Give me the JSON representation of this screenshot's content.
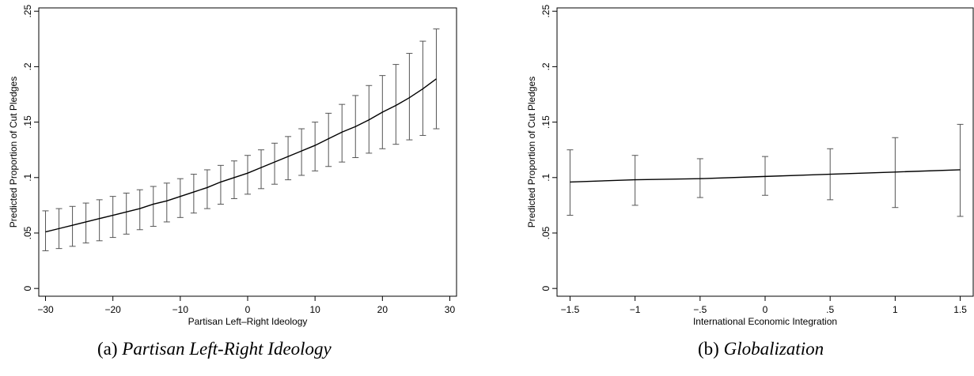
{
  "captions": [
    {
      "tag": "(a)",
      "text": "Partisan Left-Right Ideology"
    },
    {
      "tag": "(b)",
      "text": "Globalization"
    }
  ],
  "chart_data": [
    {
      "type": "line",
      "title": "",
      "xlabel": "Partisan Left–Right Ideology",
      "ylabel": "Predicted Proportion of Cut Pledges",
      "xlim": [
        -31,
        31
      ],
      "ylim": [
        -0.007,
        0.253
      ],
      "xticks": [
        -30,
        -20,
        -10,
        0,
        10,
        20,
        30
      ],
      "xtick_labels": [
        "−30",
        "−20",
        "−10",
        "0",
        "10",
        "20",
        "30"
      ],
      "yticks": [
        0,
        0.05,
        0.1,
        0.15,
        0.2,
        0.25
      ],
      "ytick_labels": [
        "0",
        ".05",
        ".1",
        ".15",
        ".2",
        ".25"
      ],
      "grid": false,
      "series": [
        {
          "x": [
            -30,
            -28,
            -26,
            -24,
            -22,
            -20,
            -18,
            -16,
            -14,
            -12,
            -10,
            -8,
            -6,
            -4,
            -2,
            0,
            2,
            4,
            6,
            8,
            10,
            12,
            14,
            16,
            18,
            20,
            22,
            24,
            26,
            28
          ],
          "y": [
            0.051,
            0.054,
            0.057,
            0.06,
            0.063,
            0.066,
            0.069,
            0.072,
            0.076,
            0.079,
            0.083,
            0.087,
            0.091,
            0.096,
            0.1,
            0.104,
            0.109,
            0.114,
            0.119,
            0.124,
            0.129,
            0.135,
            0.141,
            0.146,
            0.152,
            0.159,
            0.165,
            0.172,
            0.18,
            0.189
          ],
          "ci_low": [
            0.034,
            0.036,
            0.038,
            0.041,
            0.043,
            0.046,
            0.049,
            0.053,
            0.056,
            0.06,
            0.064,
            0.068,
            0.072,
            0.076,
            0.081,
            0.085,
            0.09,
            0.094,
            0.098,
            0.102,
            0.106,
            0.11,
            0.114,
            0.118,
            0.122,
            0.126,
            0.13,
            0.134,
            0.138,
            0.144
          ],
          "ci_high": [
            0.07,
            0.072,
            0.074,
            0.077,
            0.08,
            0.083,
            0.086,
            0.089,
            0.092,
            0.095,
            0.099,
            0.103,
            0.107,
            0.111,
            0.115,
            0.12,
            0.125,
            0.131,
            0.137,
            0.144,
            0.15,
            0.158,
            0.166,
            0.174,
            0.183,
            0.192,
            0.202,
            0.212,
            0.223,
            0.234
          ]
        }
      ]
    },
    {
      "type": "line",
      "title": "",
      "xlabel": "International Economic Integration",
      "ylabel": "Predicted Proportion of Cut Pledges",
      "xlim": [
        -1.6,
        1.6
      ],
      "ylim": [
        -0.007,
        0.253
      ],
      "xticks": [
        -1.5,
        -1,
        -0.5,
        0,
        0.5,
        1,
        1.5
      ],
      "xtick_labels": [
        "−1.5",
        "−1",
        "−.5",
        "0",
        ".5",
        "1",
        "1.5"
      ],
      "yticks": [
        0,
        0.05,
        0.1,
        0.15,
        0.2,
        0.25
      ],
      "ytick_labels": [
        "0",
        ".05",
        ".1",
        ".15",
        ".2",
        ".25"
      ],
      "grid": false,
      "series": [
        {
          "x": [
            -1.5,
            -1,
            -0.5,
            0,
            0.5,
            1,
            1.5
          ],
          "y": [
            0.096,
            0.098,
            0.099,
            0.101,
            0.103,
            0.105,
            0.107
          ],
          "ci_low": [
            0.066,
            0.075,
            0.082,
            0.084,
            0.08,
            0.073,
            0.065
          ],
          "ci_high": [
            0.125,
            0.12,
            0.117,
            0.119,
            0.126,
            0.136,
            0.148
          ]
        }
      ]
    }
  ]
}
